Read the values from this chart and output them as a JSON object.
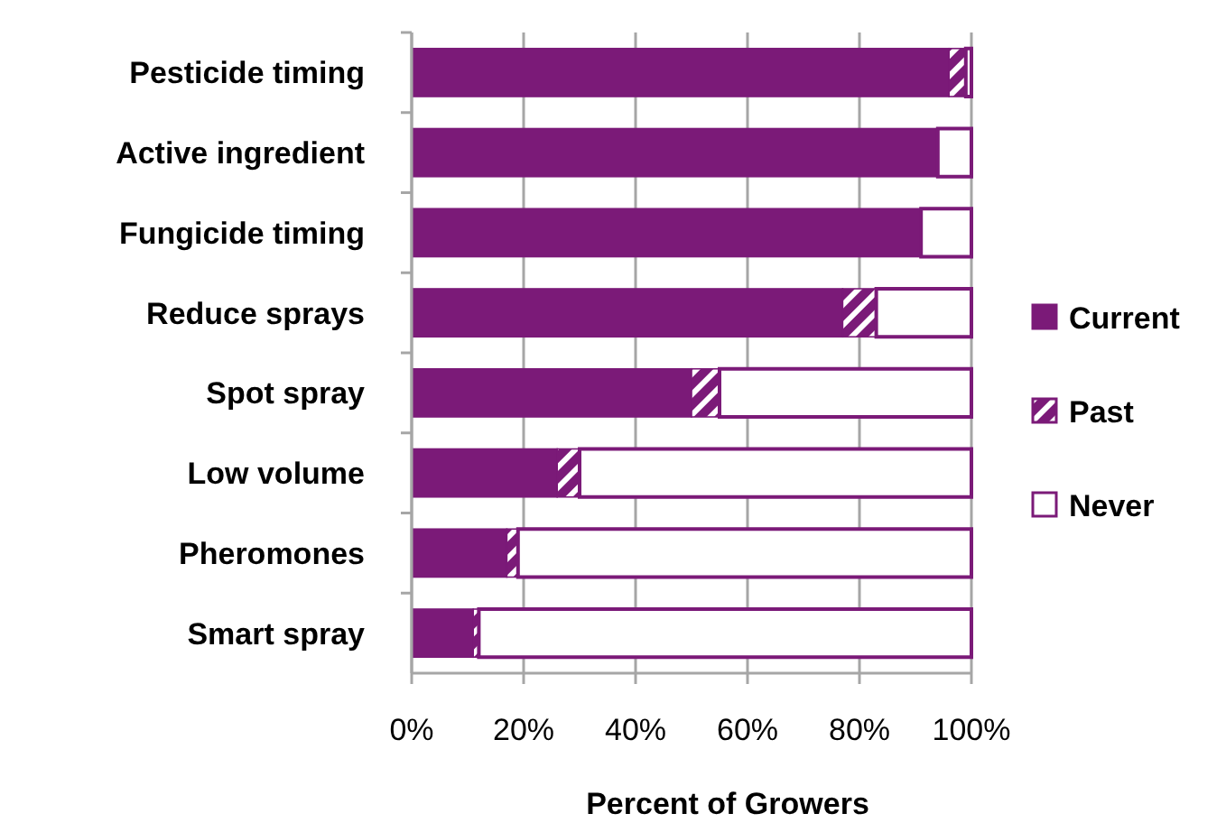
{
  "chart_data": {
    "type": "bar",
    "orientation": "horizontal",
    "stacked": true,
    "xlabel": "Percent of Growers",
    "categories": [
      "Pesticide timing",
      "Active ingredient",
      "Fungicide timing",
      "Reduce sprays",
      "Spot spray",
      "Low volume",
      "Pheromones",
      "Smart spray"
    ],
    "series": [
      {
        "name": "Current",
        "color": "#7b1a78",
        "values": [
          96,
          94,
          91,
          77,
          50,
          26,
          17,
          11
        ]
      },
      {
        "name": "Past",
        "color": "#7b1a78",
        "values": [
          3,
          0,
          0,
          6,
          5,
          4,
          2,
          1
        ]
      },
      {
        "name": "Never",
        "color": "#7b1a78",
        "values": [
          1,
          6,
          9,
          17,
          45,
          70,
          81,
          88
        ]
      }
    ],
    "xlim": [
      0,
      100
    ],
    "xticks": [
      {
        "value": 0,
        "label": "0%"
      },
      {
        "value": 20,
        "label": "20%"
      },
      {
        "value": 40,
        "label": "40%"
      },
      {
        "value": 60,
        "label": "60%"
      },
      {
        "value": 80,
        "label": "80%"
      },
      {
        "value": 100,
        "label": "100%"
      }
    ],
    "grid": "x",
    "legend": "right"
  }
}
